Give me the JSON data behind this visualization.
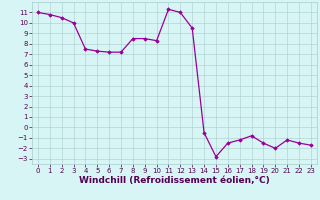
{
  "hours": [
    0,
    1,
    2,
    3,
    4,
    5,
    6,
    7,
    8,
    9,
    10,
    11,
    12,
    13,
    14,
    15,
    16,
    17,
    18,
    19,
    20,
    21,
    22,
    23
  ],
  "values": [
    11.0,
    10.8,
    10.5,
    10.0,
    7.5,
    7.3,
    7.2,
    7.2,
    8.5,
    8.5,
    8.3,
    11.3,
    11.0,
    9.5,
    -0.5,
    -2.8,
    -1.5,
    -1.2,
    -0.8,
    -1.5,
    -2.0,
    -1.2,
    -1.5,
    -1.7
  ],
  "line_color": "#990099",
  "marker": "D",
  "marker_size": 1.8,
  "xlabel": "Windchill (Refroidissement éolien,°C)",
  "xlim": [
    -0.5,
    23.5
  ],
  "ylim": [
    -3.5,
    12.0
  ],
  "yticks": [
    -3,
    -2,
    -1,
    0,
    1,
    2,
    3,
    4,
    5,
    6,
    7,
    8,
    9,
    10,
    11
  ],
  "xticks": [
    0,
    1,
    2,
    3,
    4,
    5,
    6,
    7,
    8,
    9,
    10,
    11,
    12,
    13,
    14,
    15,
    16,
    17,
    18,
    19,
    20,
    21,
    22,
    23
  ],
  "bg_color": "#d8f5f5",
  "grid_color": "#aacccc",
  "axis_label_color": "#550055",
  "tick_label_color": "#550055",
  "xlabel_fontsize": 6.5,
  "tick_fontsize": 5.0,
  "linewidth": 0.9
}
